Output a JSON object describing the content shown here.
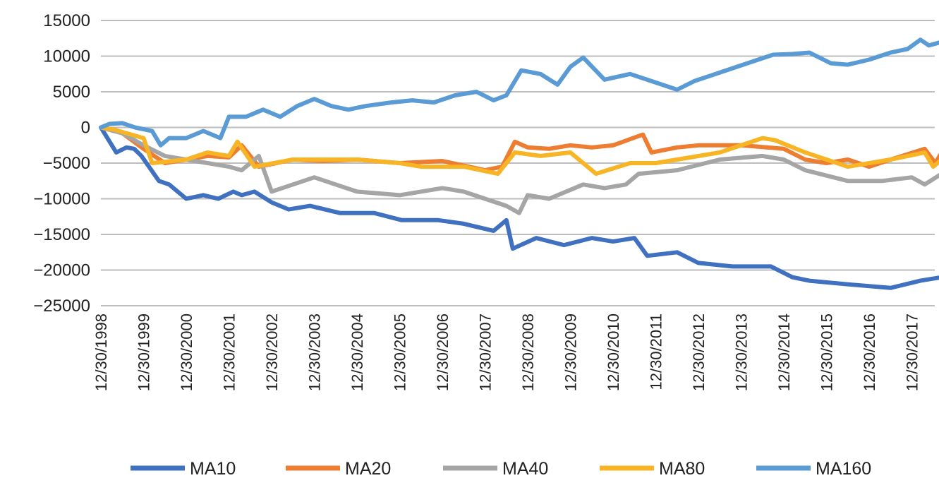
{
  "chart_data": {
    "type": "line",
    "title": "",
    "xlabel": "",
    "ylabel": "",
    "ylim": [
      -25000,
      15000
    ],
    "yticks": [
      15000,
      10000,
      5000,
      0,
      -5000,
      -10000,
      -15000,
      -20000,
      -25000
    ],
    "ytick_labels": [
      "15000",
      "10000",
      "5000",
      "0",
      "−5000",
      "−10000",
      "−15000",
      "−20000",
      "−25000"
    ],
    "x_unit": "years since 12/30/1998",
    "xlim": [
      0,
      19.7
    ],
    "xtick_labels": [
      "12/30/1998",
      "12/30/1999",
      "12/30/2000",
      "12/30/2001",
      "12/30/2002",
      "12/30/2003",
      "12/30/2004",
      "12/30/2005",
      "12/30/2006",
      "12/30/2007",
      "12/30/2008",
      "12/30/2009",
      "12/30/2010",
      "12/30/2011",
      "12/30/2012",
      "12/30/2013",
      "12/30/2014",
      "12/30/2015",
      "12/30/2016",
      "12/30/2017"
    ],
    "grid": true,
    "legend_position": "bottom",
    "series": [
      {
        "name": "MA10",
        "color": "#4070C0",
        "x": [
          0,
          0.36,
          0.6,
          0.78,
          0.95,
          1.36,
          1.6,
          2.0,
          2.4,
          2.75,
          3.1,
          3.3,
          3.6,
          4.0,
          4.4,
          4.9,
          5.6,
          6.4,
          7.05,
          7.9,
          8.5,
          9.2,
          9.5,
          9.65,
          10.2,
          10.85,
          11.5,
          12.0,
          12.5,
          12.8,
          13.5,
          14.0,
          14.8,
          15.7,
          16.2,
          16.6,
          17.5,
          18.5,
          19.2,
          19.7
        ],
        "y": [
          0,
          -3500,
          -2800,
          -3000,
          -4000,
          -7500,
          -8000,
          -10000,
          -9500,
          -10000,
          -9000,
          -9500,
          -9000,
          -10500,
          -11500,
          -11000,
          -12000,
          -12000,
          -13000,
          -13000,
          -13500,
          -14500,
          -13000,
          -17000,
          -15500,
          -16500,
          -15500,
          -16000,
          -15500,
          -18000,
          -17500,
          -19000,
          -19500,
          -19500,
          -21000,
          -21500,
          -22000,
          -22500,
          -21500,
          -21000
        ]
      },
      {
        "name": "MA20",
        "color": "#ED7D31",
        "x": [
          0,
          0.5,
          1.0,
          1.5,
          2.0,
          2.5,
          3.0,
          3.3,
          3.7,
          4.5,
          5.2,
          6.0,
          7.0,
          8.0,
          9.0,
          9.4,
          9.7,
          10.0,
          10.5,
          11.0,
          11.5,
          12.0,
          12.7,
          12.9,
          13.5,
          14.0,
          15.0,
          16.0,
          16.5,
          17.0,
          17.5,
          18.0,
          18.5,
          19.3,
          19.55,
          19.7
        ],
        "y": [
          0,
          -800,
          -3000,
          -5000,
          -4500,
          -4000,
          -4200,
          -2500,
          -5500,
          -4500,
          -4700,
          -4500,
          -5000,
          -4700,
          -6000,
          -5500,
          -2000,
          -2800,
          -3000,
          -2500,
          -2800,
          -2500,
          -1000,
          -3500,
          -2800,
          -2500,
          -2500,
          -3000,
          -4500,
          -5000,
          -4500,
          -5500,
          -4500,
          -3000,
          -5000,
          -3500
        ]
      },
      {
        "name": "MA40",
        "color": "#A5A5A5",
        "x": [
          0,
          0.5,
          1.0,
          1.5,
          2.0,
          2.5,
          3.0,
          3.3,
          3.7,
          4.0,
          4.5,
          5.0,
          5.5,
          6.0,
          7.0,
          8.0,
          8.5,
          9.0,
          9.5,
          9.8,
          10.0,
          10.5,
          11.3,
          11.8,
          12.3,
          12.6,
          13.5,
          14.5,
          15.5,
          16.0,
          16.5,
          17.5,
          18.3,
          19.0,
          19.3,
          19.7
        ],
        "y": [
          0,
          -800,
          -2500,
          -4000,
          -4500,
          -5000,
          -5500,
          -6000,
          -4000,
          -9000,
          -8000,
          -7000,
          -8000,
          -9000,
          -9500,
          -8500,
          -9000,
          -10000,
          -11000,
          -12000,
          -9500,
          -10000,
          -8000,
          -8500,
          -8000,
          -6500,
          -6000,
          -4500,
          -4000,
          -4500,
          -6000,
          -7500,
          -7500,
          -7000,
          -8000,
          -6500
        ]
      },
      {
        "name": "MA80",
        "color": "#F7B526",
        "x": [
          0,
          0.3,
          1.0,
          1.2,
          2.0,
          2.5,
          3.0,
          3.2,
          3.6,
          4.5,
          5.2,
          6.0,
          7.0,
          7.5,
          8.5,
          9.3,
          9.7,
          10.3,
          11.0,
          11.6,
          12.4,
          13.0,
          13.5,
          14.5,
          15.5,
          15.8,
          16.5,
          17.5,
          18.5,
          19.3,
          19.5,
          19.7
        ],
        "y": [
          0,
          -300,
          -1500,
          -5000,
          -4500,
          -3500,
          -4000,
          -2000,
          -5500,
          -4500,
          -4500,
          -4500,
          -5000,
          -5500,
          -5500,
          -6500,
          -3500,
          -4000,
          -3500,
          -6500,
          -5000,
          -5000,
          -4500,
          -3500,
          -1500,
          -1800,
          -3500,
          -5500,
          -4500,
          -3500,
          -5500,
          -4500
        ]
      },
      {
        "name": "MA160",
        "color": "#5B9BD5",
        "x": [
          0,
          0.2,
          0.5,
          0.8,
          1.2,
          1.4,
          1.6,
          2.0,
          2.4,
          2.8,
          3.0,
          3.4,
          3.8,
          4.2,
          4.6,
          5.0,
          5.4,
          5.8,
          6.2,
          6.8,
          7.3,
          7.8,
          8.3,
          8.8,
          9.2,
          9.5,
          9.85,
          10.3,
          10.7,
          11.0,
          11.3,
          11.8,
          12.4,
          12.9,
          13.5,
          13.9,
          14.4,
          14.9,
          15.4,
          15.75,
          16.2,
          16.6,
          17.1,
          17.5,
          18.0,
          18.5,
          18.9,
          19.2,
          19.4,
          19.7
        ],
        "y": [
          0,
          500,
          600,
          0,
          -500,
          -2500,
          -1500,
          -1500,
          -500,
          -1500,
          1500,
          1500,
          2500,
          1500,
          3000,
          4000,
          3000,
          2500,
          3000,
          3500,
          3800,
          3500,
          4500,
          5000,
          3800,
          4500,
          8000,
          7500,
          6000,
          8500,
          9800,
          6700,
          7500,
          6500,
          5300,
          6500,
          7500,
          8500,
          9500,
          10200,
          10300,
          10500,
          9000,
          8800,
          9500,
          10500,
          11000,
          12300,
          11500,
          12000
        ]
      }
    ]
  }
}
